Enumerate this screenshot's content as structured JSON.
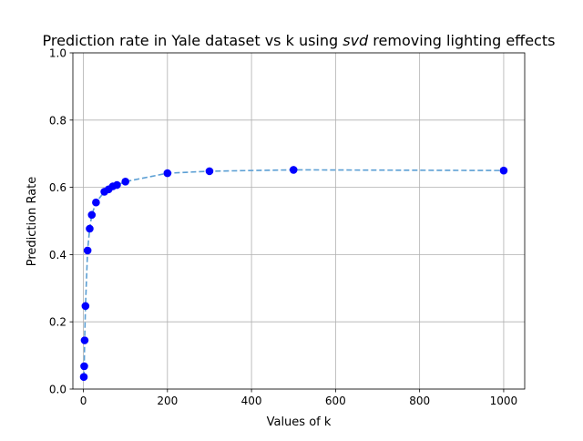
{
  "chart_data": {
    "type": "scatter",
    "title": "Prediction rate in Yale dataset vs k using ",
    "title_italic": "svd",
    "title_suffix": " removing lighting effects",
    "xlabel": "Values of k",
    "ylabel": "Prediction Rate",
    "xlim": [
      -25,
      1050
    ],
    "ylim": [
      0,
      1
    ],
    "xticks": [
      0,
      200,
      400,
      600,
      800,
      1000
    ],
    "yticks": [
      0.0,
      0.2,
      0.4,
      0.6,
      0.8,
      1.0
    ],
    "xtick_labels": [
      "0",
      "200",
      "400",
      "600",
      "800",
      "1000"
    ],
    "ytick_labels": [
      "0.0",
      "0.2",
      "0.4",
      "0.6",
      "0.8",
      "1.0"
    ],
    "grid": true,
    "series": [
      {
        "marker_color": "#0000ff",
        "line_color": "#5b9fd4",
        "line_style": "dashed",
        "x": [
          1,
          2,
          3,
          5,
          10,
          15,
          20,
          30,
          50,
          60,
          70,
          80,
          100,
          200,
          300,
          500,
          1000
        ],
        "y": [
          0.036,
          0.068,
          0.145,
          0.247,
          0.412,
          0.477,
          0.518,
          0.555,
          0.587,
          0.594,
          0.603,
          0.607,
          0.617,
          0.642,
          0.648,
          0.652,
          0.65
        ]
      }
    ]
  }
}
